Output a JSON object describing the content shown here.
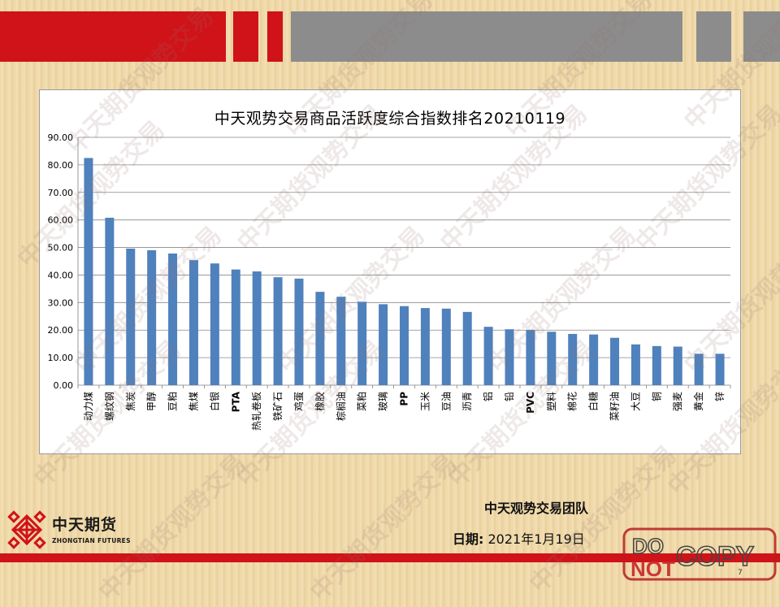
{
  "chart_data": {
    "type": "bar",
    "title": "中天观势交易商品活跃度综合指数排名20210119",
    "categories": [
      "动力煤",
      "螺纹钢",
      "焦炭",
      "甲醇",
      "豆粕",
      "焦煤",
      "白银",
      "PTA",
      "热轧卷板",
      "铁矿石",
      "鸡蛋",
      "橡胶",
      "棕榈油",
      "菜粕",
      "玻璃",
      "PP",
      "玉米",
      "豆油",
      "沥青",
      "铝",
      "铅",
      "PVC",
      "塑料",
      "棉花",
      "白糖",
      "菜籽油",
      "大豆",
      "铜",
      "强麦",
      "黄金",
      "锌"
    ],
    "values": [
      82.5,
      60.8,
      49.6,
      49.0,
      47.8,
      45.4,
      44.2,
      42.0,
      41.3,
      39.2,
      38.7,
      33.9,
      32.1,
      30.3,
      29.4,
      28.7,
      28.0,
      27.8,
      26.6,
      21.2,
      20.3,
      20.0,
      19.4,
      18.6,
      18.4,
      17.2,
      14.8,
      14.2,
      14.0,
      11.4,
      11.4
    ],
    "ylim": [
      0,
      90
    ],
    "yticks": [
      "0.00",
      "10.00",
      "20.00",
      "30.00",
      "40.00",
      "50.00",
      "60.00",
      "70.00",
      "80.00",
      "90.00"
    ],
    "grid": true,
    "bar_color": "#4f81bd"
  },
  "footer": {
    "team": "中天观势交易团队",
    "date_label": "日期:",
    "date_value": "2021年1月19日",
    "page_number": "7"
  },
  "logo": {
    "name_cn": "中天期货",
    "name_en": "ZHONGTIAN FUTURES"
  },
  "stamp": {
    "line1": "DO",
    "line2": "NOT",
    "word": "COPY"
  },
  "colors": {
    "brand_red": "#d01219",
    "header_gray": "#8c8c8c"
  },
  "watermark": "中天期货观势交易"
}
